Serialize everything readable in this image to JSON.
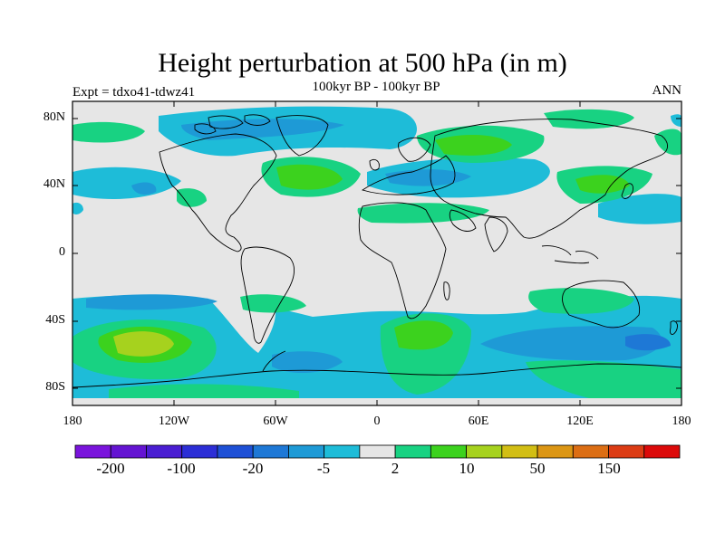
{
  "header": {
    "title": "Height perturbation at 500 hPa (in m)",
    "left_label": "Expt = tdxo41-tdwz41",
    "center_label": "100kyr BP - 100kyr BP",
    "right_label": "ANN"
  },
  "map": {
    "projection": "cylindrical-equidistant",
    "background_color": "#e6e6e6",
    "x_ticks": [
      "180",
      "120W",
      "60W",
      "0",
      "60E",
      "120E",
      "180"
    ],
    "y_ticks": [
      "80N",
      "40N",
      "0",
      "40S",
      "80S"
    ]
  },
  "colorbar": {
    "colors": [
      "#7a14dc",
      "#6414d2",
      "#4a1ed2",
      "#2c2ed6",
      "#1e50d6",
      "#1e78d6",
      "#1e9ad6",
      "#1ebcd8",
      "#e6e6e6",
      "#18d282",
      "#3cd21e",
      "#a6d21e",
      "#d2be14",
      "#dc9614",
      "#dc6e14",
      "#dc3c14",
      "#dc0a0a"
    ],
    "labels": [
      "-200",
      "-100",
      "-20",
      "-5",
      "2",
      "10",
      "50",
      "150"
    ]
  }
}
